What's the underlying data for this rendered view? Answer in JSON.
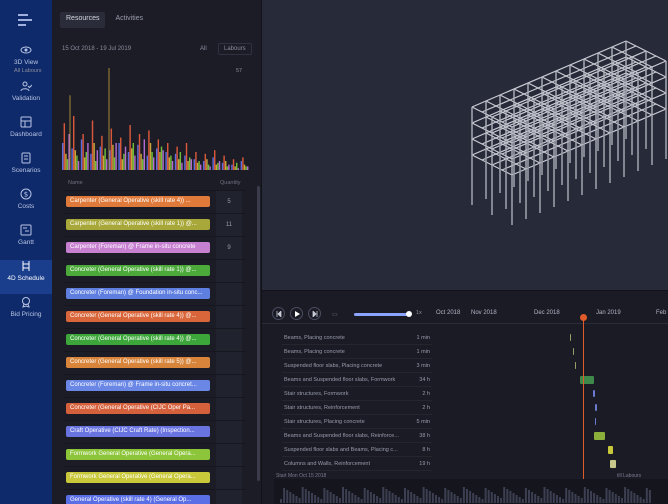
{
  "nav": {
    "items": [
      {
        "label": "3D View",
        "icon": "eye-icon"
      },
      {
        "label": "Validation",
        "icon": "person-check-icon"
      },
      {
        "label": "Dashboard",
        "icon": "dashboard-icon"
      },
      {
        "label": "Scenarios",
        "icon": "scenario-icon"
      },
      {
        "label": "Costs",
        "icon": "dollar-icon"
      },
      {
        "label": "Gantt",
        "icon": "gantt-icon"
      },
      {
        "label": "4D Schedule",
        "icon": "schedule-icon"
      },
      {
        "label": "Bid Pricing",
        "icon": "bid-icon"
      }
    ],
    "active": "4D Schedule"
  },
  "panel": {
    "tabs": [
      "Resources",
      "Activities"
    ],
    "date_range": "15 Oct 2018 - 19 Jul 2019",
    "filter_all": "All",
    "filter_labours": "Labours",
    "histogram_title": "All Labours",
    "histogram_max": "57",
    "col_name": "Name",
    "col_quantity": "Quantity"
  },
  "resources": [
    {
      "name": "Carpenter (General Operative (skill rate 4)) ...",
      "color": "#e07a3a",
      "qty": "5"
    },
    {
      "name": "Carpenter (General Operative (skill rate 1)) @...",
      "color": "#a8a83a",
      "qty": "11"
    },
    {
      "name": "Carpenter (Foreman) @ Frame in-situ concrete",
      "color": "#c77fd0",
      "qty": "9"
    },
    {
      "name": "Concreter (General Operative (skill rate 1)) @...",
      "color": "#4caa3a",
      "qty": ""
    },
    {
      "name": "Concreter (Foreman) @ Foundation in-situ conc...",
      "color": "#5f7fe0",
      "qty": ""
    },
    {
      "name": "Concreter (General Operative (skill rate 4)) @...",
      "color": "#d9663a",
      "qty": ""
    },
    {
      "name": "Concreter (General Operative (skill rate 4)) @...",
      "color": "#3da63a",
      "qty": ""
    },
    {
      "name": "Concreter (General Operative (skill rate 5)) @...",
      "color": "#d8843a",
      "qty": ""
    },
    {
      "name": "Concreter (Foreman) @ Frame in-situ concret...",
      "color": "#6a87e6",
      "qty": ""
    },
    {
      "name": "Concreter (General Operative (CIJC Oper Pa...",
      "color": "#d4603c",
      "qty": ""
    },
    {
      "name": "Craft Operative (CIJC Craft Rate) (Inspection...",
      "color": "#6a74e0",
      "qty": ""
    },
    {
      "name": "Formwork General Operative (General Opera...",
      "color": "#8cc43a",
      "qty": ""
    },
    {
      "name": "Formwork General Operative (General Opera...",
      "color": "#c8c83a",
      "qty": ""
    },
    {
      "name": "General Operative (skill rate 4) (General Op...",
      "color": "#5a6ee6",
      "qty": ""
    }
  ],
  "histogram": {
    "series_colors": [
      "#5b6be0",
      "#d9583a",
      "#c9a63a",
      "#6fbd3a",
      "#b46ad0"
    ],
    "values": [
      [
        30,
        52,
        18,
        12,
        40
      ],
      [
        24,
        60,
        22,
        16,
        10
      ],
      [
        34,
        40,
        14,
        20,
        30
      ],
      [
        18,
        55,
        30,
        10,
        22
      ],
      [
        26,
        38,
        16,
        24,
        12
      ],
      [
        22,
        46,
        28,
        14,
        30
      ],
      [
        30,
        36,
        12,
        18,
        26
      ],
      [
        20,
        50,
        24,
        30,
        16
      ],
      [
        28,
        40,
        18,
        12,
        34
      ],
      [
        16,
        44,
        30,
        20,
        14
      ],
      [
        24,
        34,
        20,
        26,
        22
      ],
      [
        20,
        30,
        14,
        16,
        10
      ],
      [
        18,
        26,
        12,
        20,
        8
      ],
      [
        16,
        30,
        10,
        14,
        12
      ],
      [
        12,
        20,
        8,
        10,
        6
      ],
      [
        10,
        18,
        12,
        6,
        4
      ],
      [
        14,
        22,
        6,
        8,
        10
      ],
      [
        8,
        16,
        10,
        4,
        6
      ],
      [
        6,
        12,
        4,
        8,
        2
      ],
      [
        10,
        14,
        6,
        4,
        4
      ]
    ],
    "spikes": [
      88,
      120
    ]
  },
  "gantt": {
    "months": [
      "Oct 2018",
      "Nov 2018",
      "Dec 2018",
      "Jan 2019",
      "Feb"
    ],
    "tasks": [
      {
        "name": "Beams, Placing concrete",
        "dur": "1 min"
      },
      {
        "name": "Beams, Placing concrete",
        "dur": "1 min"
      },
      {
        "name": "Suspended floor slabs, Placing concrete",
        "dur": "3 min"
      },
      {
        "name": "Beams and Suspended floor slabs, Formwork",
        "dur": "34 h"
      },
      {
        "name": "Stair structures, Formwork",
        "dur": "2 h"
      },
      {
        "name": "Stair structures, Reinforcement",
        "dur": "2 h"
      },
      {
        "name": "Stair structures, Placing concrete",
        "dur": "5 min"
      },
      {
        "name": "Beams and Suspended floor slabs, Reinforce...",
        "dur": "38 h"
      },
      {
        "name": "Suspended floor slabs and Beams, Placing c...",
        "dur": "8 h"
      },
      {
        "name": "Columns and Walls, Reinforcement",
        "dur": "19 h"
      }
    ],
    "bars": [
      {
        "color": "#9a9a6a",
        "w": 1
      },
      {
        "color": "#9a9a6a",
        "w": 1
      },
      {
        "color": "#9a9a6a",
        "w": 1
      },
      {
        "color": "#3f8a4a",
        "w": 14
      },
      {
        "color": "#6a7ad0",
        "w": 2
      },
      {
        "color": "#6a7ad0",
        "w": 2
      },
      {
        "color": "#6a7ad0",
        "w": 1
      },
      {
        "color": "#8cae3a",
        "w": 11
      },
      {
        "color": "#c8c83a",
        "w": 5
      },
      {
        "color": "#c8c88a",
        "w": 6
      }
    ],
    "start_label": "Start Mon Oct 15 2018",
    "end_label": "till Labours",
    "speed": "1x"
  }
}
